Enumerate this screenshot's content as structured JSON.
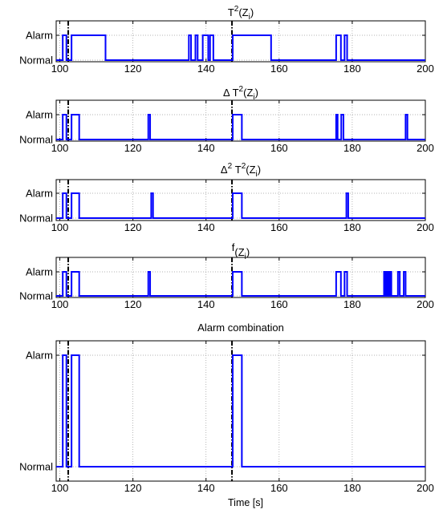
{
  "figure": {
    "xlabel": "Time [s]"
  },
  "chart_data": [
    {
      "type": "line",
      "title": {
        "base": "T",
        "sup": "2",
        "paren": "(Z",
        "sub": "i",
        "close": ")"
      },
      "xlim": [
        99,
        200
      ],
      "xticks": [
        100,
        120,
        140,
        160,
        180,
        200
      ],
      "yticks": [
        "Normal",
        "Alarm"
      ],
      "ylim": [
        0,
        1
      ],
      "grid": true,
      "event_lines": [
        102.3,
        147.1
      ],
      "series": [
        {
          "color": "#0000ff",
          "x": [
            99,
            100.8,
            100.8,
            101.8,
            101.8,
            103.2,
            103.2,
            112.5,
            112.5,
            135.3,
            135.3,
            135.9,
            135.9,
            137.1,
            137.1,
            137.7,
            137.7,
            139.1,
            139.1,
            140.6,
            140.6,
            141.1,
            141.1,
            142.0,
            142.0,
            147.3,
            147.3,
            157.8,
            157.8,
            175.6,
            175.6,
            176.9,
            176.9,
            177.9,
            177.9,
            178.6,
            178.6,
            200
          ],
          "y": [
            0,
            0,
            1,
            1,
            0,
            0,
            1,
            1,
            0,
            0,
            1,
            1,
            0,
            0,
            1,
            1,
            0,
            0,
            1,
            1,
            0,
            0,
            1,
            1,
            0,
            0,
            1,
            1,
            0,
            0,
            1,
            1,
            0,
            0,
            1,
            1,
            0,
            0
          ]
        }
      ]
    },
    {
      "type": "line",
      "title": {
        "pre": "Δ T",
        "sup": "2",
        "paren": "(Z",
        "sub": "i",
        "close": ")"
      },
      "xlim": [
        99,
        200
      ],
      "xticks": [
        100,
        120,
        140,
        160,
        180,
        200
      ],
      "yticks": [
        "Normal",
        "Alarm"
      ],
      "ylim": [
        0,
        1
      ],
      "grid": true,
      "event_lines": [
        102.3,
        147.1
      ],
      "series": [
        {
          "color": "#0000ff",
          "x": [
            99,
            100.8,
            100.8,
            101.8,
            101.8,
            103.2,
            103.2,
            105.3,
            105.3,
            124.2,
            124.2,
            124.7,
            124.7,
            147.3,
            147.3,
            149.8,
            149.8,
            175.6,
            175.6,
            176.0,
            176.0,
            177.0,
            177.0,
            177.6,
            177.6,
            194.6,
            194.6,
            195.1,
            195.1,
            200
          ],
          "y": [
            0,
            0,
            1,
            1,
            0,
            0,
            1,
            1,
            0,
            0,
            1,
            1,
            0,
            0,
            1,
            1,
            0,
            0,
            1,
            1,
            0,
            0,
            1,
            1,
            0,
            0,
            1,
            1,
            0,
            0
          ]
        }
      ]
    },
    {
      "type": "line",
      "title": {
        "base": "Δ",
        "sup": "2",
        "mid": " T",
        "sup2": "2",
        "paren": "(Z",
        "sub": "i",
        "close": ")"
      },
      "xlim": [
        99,
        200
      ],
      "xticks": [
        100,
        120,
        140,
        160,
        180,
        200
      ],
      "yticks": [
        "Normal",
        "Alarm"
      ],
      "ylim": [
        0,
        1
      ],
      "grid": true,
      "event_lines": [
        102.3,
        147.1
      ],
      "series": [
        {
          "color": "#0000ff",
          "x": [
            99,
            100.8,
            100.8,
            101.8,
            101.8,
            103.2,
            103.2,
            105.3,
            105.3,
            125.0,
            125.0,
            125.5,
            125.5,
            147.3,
            147.3,
            149.8,
            149.8,
            178.4,
            178.4,
            178.9,
            178.9,
            200
          ],
          "y": [
            0,
            0,
            1,
            1,
            0,
            0,
            1,
            1,
            0,
            0,
            1,
            1,
            0,
            0,
            1,
            1,
            0,
            0,
            1,
            1,
            0,
            0
          ]
        }
      ]
    },
    {
      "type": "line",
      "title": {
        "base": "f",
        "paren": "(Z",
        "sub": "i",
        "close": ")"
      },
      "xlim": [
        99,
        200
      ],
      "xticks": [
        100,
        120,
        140,
        160,
        180,
        200
      ],
      "yticks": [
        "Normal",
        "Alarm"
      ],
      "ylim": [
        0,
        1
      ],
      "grid": true,
      "event_lines": [
        102.3,
        147.1
      ],
      "series": [
        {
          "color": "#0000ff",
          "x": [
            99,
            100.8,
            100.8,
            101.8,
            101.8,
            103.2,
            103.2,
            105.3,
            105.3,
            124.2,
            124.2,
            124.7,
            124.7,
            147.3,
            147.3,
            149.8,
            149.8,
            175.6,
            175.6,
            176.9,
            176.9,
            177.9,
            177.9,
            178.6,
            178.6,
            188.7,
            188.7,
            189.1,
            189.1,
            189.5,
            189.5,
            189.9,
            189.9,
            190.3,
            190.3,
            190.7,
            190.7,
            192.5,
            192.5,
            193.0,
            193.0,
            194.1,
            194.1,
            194.6,
            194.6,
            200
          ],
          "y": [
            0,
            0,
            1,
            1,
            0,
            0,
            1,
            1,
            0,
            0,
            1,
            1,
            0,
            0,
            1,
            1,
            0,
            0,
            1,
            1,
            0,
            0,
            1,
            1,
            0,
            0,
            1,
            1,
            0,
            0,
            1,
            1,
            0,
            0,
            1,
            1,
            0,
            0,
            1,
            1,
            0,
            0,
            1,
            1,
            0,
            0
          ]
        }
      ]
    },
    {
      "type": "line",
      "title": {
        "base": "Alarm combination"
      },
      "xlim": [
        99,
        200
      ],
      "xticks": [
        100,
        120,
        140,
        160,
        180,
        200
      ],
      "yticks": [
        "Normal",
        "Alarm"
      ],
      "ylim": [
        0,
        1
      ],
      "grid": true,
      "event_lines": [
        102.3,
        147.1
      ],
      "series": [
        {
          "color": "#0000ff",
          "x": [
            99,
            100.8,
            100.8,
            101.8,
            101.8,
            103.2,
            103.2,
            105.3,
            105.3,
            147.3,
            147.3,
            149.8,
            149.8,
            200
          ],
          "y": [
            0,
            0,
            1,
            1,
            0,
            0,
            1,
            1,
            0,
            0,
            1,
            1,
            0,
            0
          ]
        }
      ]
    }
  ]
}
